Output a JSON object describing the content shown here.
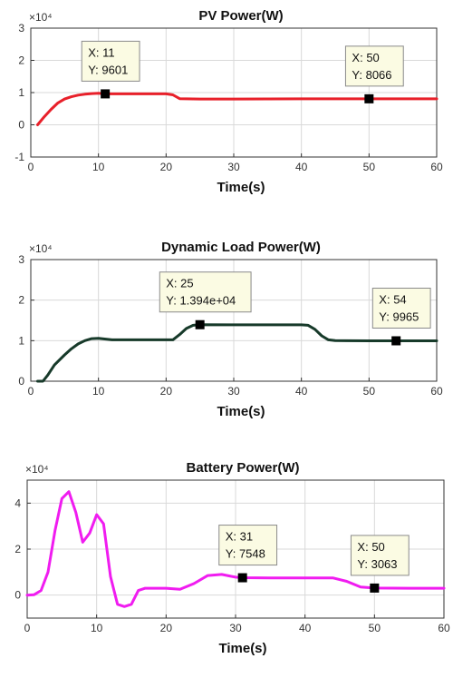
{
  "chart_data": [
    {
      "type": "line",
      "title": "PV Power(W)",
      "xlabel": "Time(s)",
      "ylabel": "",
      "y_exponent_label": "×10⁴",
      "xlim": [
        0,
        60
      ],
      "ylim": [
        -1,
        3
      ],
      "xticks": [
        "0",
        "10",
        "20",
        "30",
        "40",
        "50",
        "60"
      ],
      "yticks": [
        "-1",
        "0",
        "1",
        "2",
        "3"
      ],
      "grid": true,
      "series": [
        {
          "color": "#e8202a",
          "x": [
            1,
            2,
            3,
            4,
            5,
            6,
            7,
            8,
            9,
            10,
            11,
            15,
            20,
            21,
            22,
            25,
            30,
            40,
            50,
            60
          ],
          "y": [
            0.0,
            0.25,
            0.48,
            0.68,
            0.8,
            0.87,
            0.92,
            0.95,
            0.97,
            0.98,
            0.9601,
            0.96,
            0.96,
            0.93,
            0.81,
            0.8,
            0.8,
            0.8066,
            0.8066,
            0.8066
          ]
        }
      ],
      "datatips": [
        {
          "x": 11,
          "y": 0.9601,
          "x_text": "X: 11",
          "y_text": "Y: 9601"
        },
        {
          "x": 50,
          "y": 0.8066,
          "x_text": "X: 50",
          "y_text": "Y: 8066"
        }
      ]
    },
    {
      "type": "line",
      "title": "Dynamic Load Power(W)",
      "xlabel": "Time(s)",
      "ylabel": "",
      "y_exponent_label": "×10⁴",
      "xlim": [
        0,
        60
      ],
      "ylim": [
        0,
        3
      ],
      "xticks": [
        "0",
        "10",
        "20",
        "30",
        "40",
        "50",
        "60"
      ],
      "yticks": [
        "0",
        "1",
        "2",
        "3"
      ],
      "grid": true,
      "series": [
        {
          "color": "#173a2a",
          "x": [
            1,
            1.8,
            2.5,
            3.5,
            5,
            6,
            7,
            8,
            9,
            10,
            12,
            20,
            21,
            22,
            23,
            24,
            25,
            30,
            40,
            41,
            42,
            43,
            44,
            45,
            50,
            55,
            60
          ],
          "y": [
            0.0,
            0.0,
            0.15,
            0.4,
            0.65,
            0.8,
            0.92,
            1.0,
            1.05,
            1.06,
            1.02,
            1.02,
            1.02,
            1.15,
            1.3,
            1.38,
            1.394,
            1.39,
            1.39,
            1.38,
            1.28,
            1.12,
            1.02,
            1.0,
            0.9965,
            0.9965,
            0.9965
          ]
        }
      ],
      "datatips": [
        {
          "x": 25,
          "y": 1.394,
          "x_text": "X: 25",
          "y_text": "Y: 1.394e+04"
        },
        {
          "x": 54,
          "y": 0.9965,
          "x_text": "X: 54",
          "y_text": "Y: 9965"
        }
      ]
    },
    {
      "type": "line",
      "title": "Battery Power(W)",
      "xlabel": "Time(s)",
      "ylabel": "",
      "y_exponent_label": "×10⁴",
      "xlim": [
        0,
        60
      ],
      "ylim": [
        -1,
        5
      ],
      "xticks": [
        "0",
        "10",
        "20",
        "30",
        "40",
        "50",
        "60"
      ],
      "yticks": [
        "0",
        "2",
        "4"
      ],
      "grid": true,
      "series": [
        {
          "color": "#f01cf0",
          "x": [
            0,
            1,
            2,
            3,
            4,
            5,
            6,
            7,
            8,
            9,
            10,
            11,
            12,
            13,
            14,
            15,
            16,
            17,
            18,
            20,
            22,
            24,
            26,
            28,
            30,
            31,
            35,
            40,
            44,
            46,
            48,
            50,
            55,
            60
          ],
          "y": [
            0.0,
            0.02,
            0.2,
            1.0,
            2.8,
            4.2,
            4.5,
            3.6,
            2.3,
            2.7,
            3.5,
            3.1,
            0.8,
            -0.4,
            -0.5,
            -0.4,
            0.2,
            0.3,
            0.3,
            0.3,
            0.25,
            0.5,
            0.85,
            0.9,
            0.78,
            0.7548,
            0.75,
            0.75,
            0.75,
            0.6,
            0.35,
            0.3063,
            0.3,
            0.3
          ]
        }
      ],
      "datatips": [
        {
          "x": 31,
          "y": 0.7548,
          "x_text": "X: 31",
          "y_text": "Y: 7548"
        },
        {
          "x": 50,
          "y": 0.3063,
          "x_text": "X: 50",
          "y_text": "Y: 3063"
        }
      ]
    }
  ]
}
